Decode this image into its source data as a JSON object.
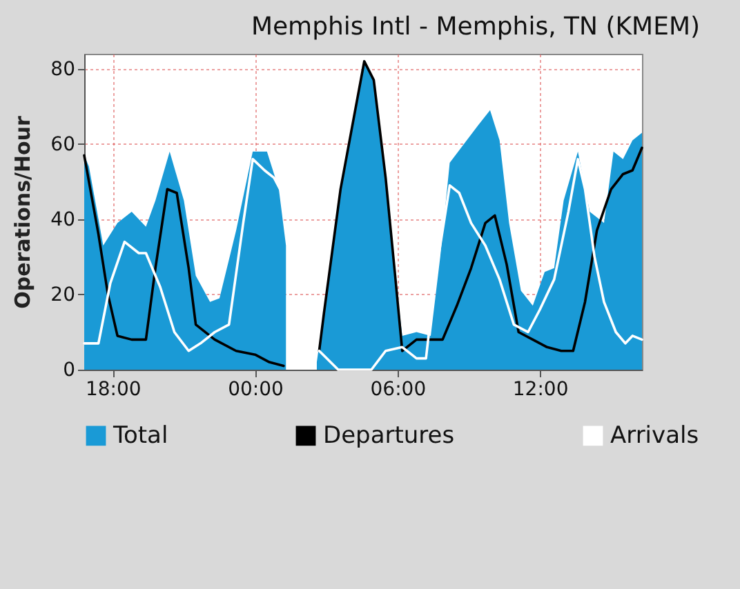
{
  "chart_data": {
    "type": "area",
    "title": "Memphis Intl - Memphis, TN (KMEM)",
    "ylabel": "Operations/Hour",
    "xlim": [
      "2000-01-01T16:48",
      "2000-01-02T16:18"
    ],
    "ylim": [
      0,
      84
    ],
    "xticks": [
      {
        "value": "2000-01-01T18:00",
        "label": "18:00"
      },
      {
        "value": "2000-01-02T00:00",
        "label": "00:00"
      },
      {
        "value": "2000-01-02T06:00",
        "label": "06:00"
      },
      {
        "value": "2000-01-02T12:00",
        "label": "12:00"
      }
    ],
    "yticks": [
      0,
      20,
      40,
      60,
      80
    ],
    "grid": true,
    "legend": "bottom",
    "series": [
      {
        "name": "Total",
        "color": "#1a9ad6",
        "x": [
          "2000-01-01T16:48",
          "2000-01-01T17:00",
          "2000-01-01T17:36",
          "2000-01-01T18:12",
          "2000-01-01T18:48",
          "2000-01-01T19:24",
          "2000-01-01T19:48",
          "2000-01-01T20:24",
          "2000-01-01T21:00",
          "2000-01-01T21:30",
          "2000-01-01T22:06",
          "2000-01-01T22:30",
          "2000-01-01T23:12",
          "2000-01-01T23:54",
          "2000-01-02T00:30",
          "2000-01-02T01:00",
          "2000-01-02T01:18",
          "2000-01-02T01:54",
          "2000-01-02T02:36",
          "2000-01-02T03:36",
          "2000-01-02T04:36",
          "2000-01-02T05:00",
          "2000-01-02T05:30",
          "2000-01-02T05:54",
          "2000-01-02T06:12",
          "2000-01-02T06:48",
          "2000-01-02T07:24",
          "2000-01-02T07:48",
          "2000-01-02T08:12",
          "2000-01-02T08:48",
          "2000-01-02T09:24",
          "2000-01-02T09:54",
          "2000-01-02T10:18",
          "2000-01-02T10:42",
          "2000-01-02T11:12",
          "2000-01-02T11:42",
          "2000-01-02T12:12",
          "2000-01-02T12:36",
          "2000-01-02T13:00",
          "2000-01-02T13:36",
          "2000-01-02T14:06",
          "2000-01-02T14:42",
          "2000-01-02T15:06",
          "2000-01-02T15:30",
          "2000-01-02T15:54",
          "2000-01-02T16:18"
        ],
        "values": [
          57,
          54,
          33,
          39,
          42,
          38,
          45,
          58,
          45,
          25,
          18,
          19,
          37,
          58,
          58,
          48,
          33,
          null,
          2,
          48,
          82,
          77,
          51,
          25,
          9,
          10,
          9,
          30,
          55,
          60,
          65,
          69,
          61,
          39,
          21,
          17,
          26,
          27,
          45,
          58,
          42,
          39,
          58,
          56,
          61,
          63
        ]
      },
      {
        "name": "Departures",
        "type": "line",
        "color": "#000000",
        "x": [
          "2000-01-01T16:48",
          "2000-01-01T17:00",
          "2000-01-01T17:24",
          "2000-01-01T17:48",
          "2000-01-01T18:12",
          "2000-01-01T18:48",
          "2000-01-01T19:24",
          "2000-01-01T19:48",
          "2000-01-01T20:18",
          "2000-01-01T20:42",
          "2000-01-01T21:12",
          "2000-01-01T21:30",
          "2000-01-01T22:18",
          "2000-01-01T23:12",
          "2000-01-02T00:00",
          "2000-01-02T00:36",
          "2000-01-02T01:12",
          "2000-01-02T01:54",
          "2000-01-02T02:42",
          "2000-01-02T02:54",
          "2000-01-02T03:36",
          "2000-01-02T04:36",
          "2000-01-02T05:00",
          "2000-01-02T05:30",
          "2000-01-02T05:54",
          "2000-01-02T06:12",
          "2000-01-02T06:48",
          "2000-01-02T07:24",
          "2000-01-02T07:54",
          "2000-01-02T08:30",
          "2000-01-02T09:06",
          "2000-01-02T09:42",
          "2000-01-02T10:06",
          "2000-01-02T10:36",
          "2000-01-02T11:06",
          "2000-01-02T11:42",
          "2000-01-02T12:18",
          "2000-01-02T12:54",
          "2000-01-02T13:24",
          "2000-01-02T13:54",
          "2000-01-02T14:24",
          "2000-01-02T15:00",
          "2000-01-02T15:30",
          "2000-01-02T15:54",
          "2000-01-02T16:18"
        ],
        "values": [
          57,
          50,
          36,
          20,
          9,
          8,
          8,
          27,
          48,
          47,
          27,
          12,
          8,
          5,
          4,
          2,
          1,
          null,
          5,
          15,
          48,
          82,
          77,
          51,
          25,
          5,
          8,
          8,
          8,
          17,
          27,
          39,
          41,
          28,
          10,
          8,
          6,
          5,
          5,
          18,
          37,
          48,
          52,
          53,
          59
        ]
      },
      {
        "name": "Arrivals",
        "type": "line",
        "color": "#ffffff",
        "x": [
          "2000-01-01T16:48",
          "2000-01-01T17:24",
          "2000-01-01T17:54",
          "2000-01-01T18:30",
          "2000-01-01T19:06",
          "2000-01-01T19:24",
          "2000-01-01T20:00",
          "2000-01-01T20:36",
          "2000-01-01T21:12",
          "2000-01-01T21:42",
          "2000-01-01T22:18",
          "2000-01-01T22:54",
          "2000-01-01T23:30",
          "2000-01-01T23:54",
          "2000-01-02T00:24",
          "2000-01-02T00:48",
          "2000-01-02T01:18",
          "2000-01-02T01:54",
          "2000-01-02T02:42",
          "2000-01-02T03:30",
          "2000-01-02T04:54",
          "2000-01-02T05:30",
          "2000-01-02T06:12",
          "2000-01-02T06:48",
          "2000-01-02T07:12",
          "2000-01-02T07:36",
          "2000-01-02T08:12",
          "2000-01-02T08:36",
          "2000-01-02T09:06",
          "2000-01-02T09:42",
          "2000-01-02T10:18",
          "2000-01-02T10:54",
          "2000-01-02T11:30",
          "2000-01-02T12:00",
          "2000-01-02T12:36",
          "2000-01-02T13:12",
          "2000-01-02T13:36",
          "2000-01-02T13:54",
          "2000-01-02T14:18",
          "2000-01-02T14:42",
          "2000-01-02T15:12",
          "2000-01-02T15:36",
          "2000-01-02T15:54",
          "2000-01-02T16:18"
        ],
        "values": [
          7,
          7,
          23,
          34,
          31,
          31,
          22,
          10,
          5,
          7,
          10,
          12,
          39,
          56,
          53,
          51,
          45,
          null,
          5,
          0,
          0,
          5,
          6,
          3,
          3,
          25,
          49,
          47,
          39,
          33,
          24,
          12,
          10,
          16,
          24,
          42,
          56,
          48,
          30,
          18,
          10,
          7,
          9,
          8
        ]
      }
    ]
  }
}
